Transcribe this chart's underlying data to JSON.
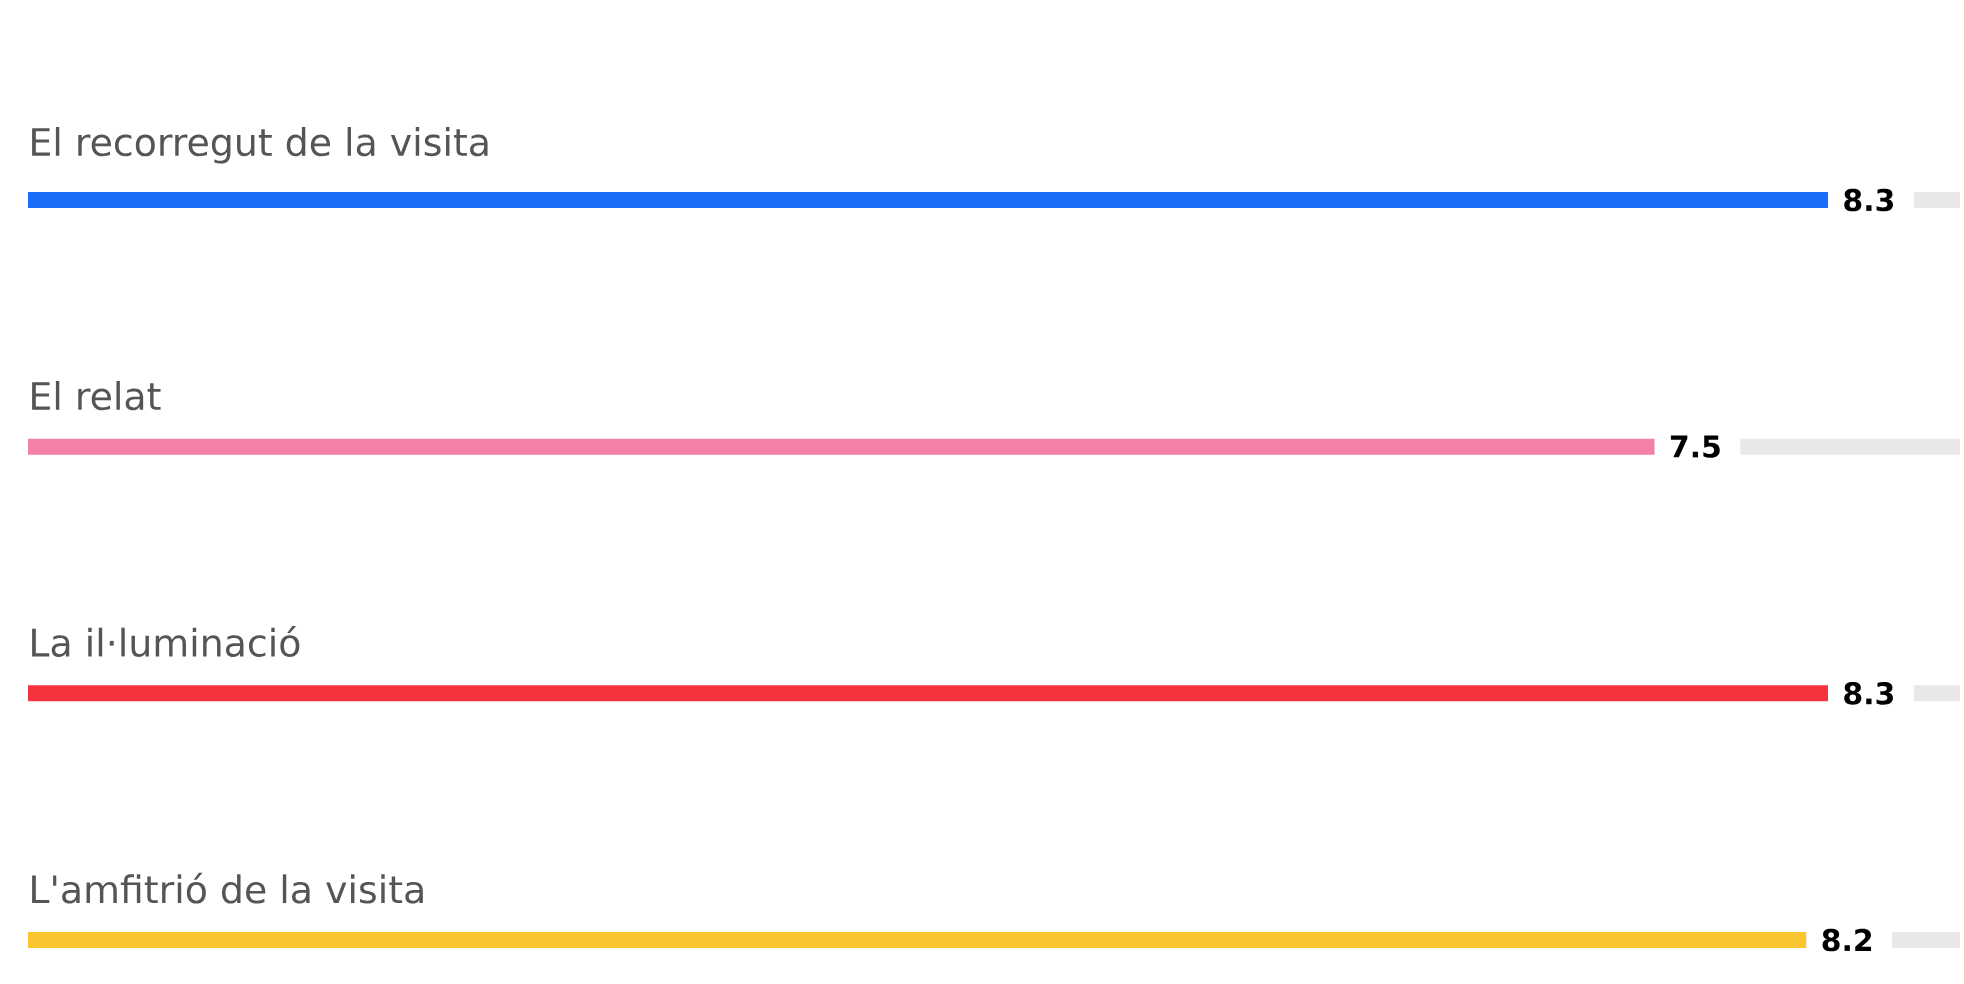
{
  "chart_data": {
    "type": "bar",
    "orientation": "horizontal",
    "categories": [
      "El recorregut de la visita",
      "El relat",
      "La il·luminació",
      "L'amfitrió de la visita"
    ],
    "values": [
      8.3,
      7.5,
      8.3,
      8.2
    ],
    "colors": [
      "#1a6ef5",
      "#f47fa8",
      "#f5333f",
      "#fbc531"
    ],
    "data_labels": true
  }
}
